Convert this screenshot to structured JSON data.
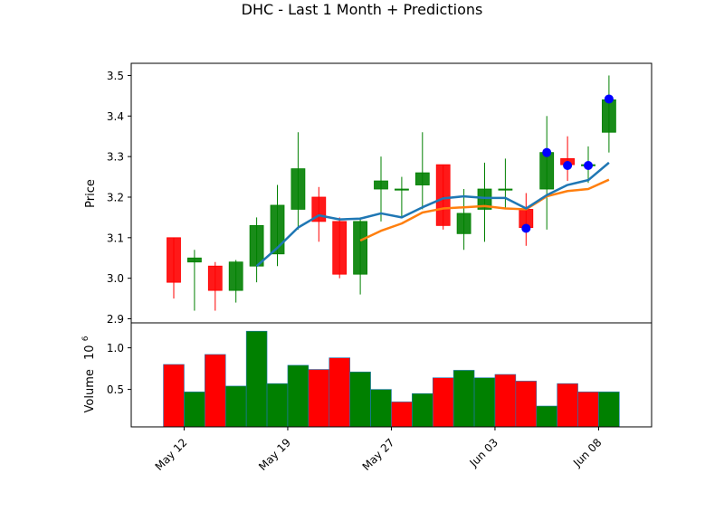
{
  "title": "DHC - Last 1 Month + Predictions",
  "chart_data": [
    {
      "type": "candlestick",
      "ylabel": "Price",
      "ylim": [
        2.89,
        3.53
      ],
      "yticks": [
        "2.9",
        "3.0",
        "3.1",
        "3.2",
        "3.3",
        "3.4",
        "3.5"
      ],
      "colors": {
        "up": "#008000",
        "down": "#ff0000",
        "ma1": "#1f77b4",
        "ma2": "#ff7f0e",
        "marker": "#0000ff"
      },
      "candles": [
        {
          "o": 3.1,
          "h": 3.1,
          "l": 2.95,
          "c": 2.99
        },
        {
          "o": 3.04,
          "h": 3.07,
          "l": 2.92,
          "c": 3.05
        },
        {
          "o": 3.03,
          "h": 3.04,
          "l": 2.92,
          "c": 2.97
        },
        {
          "o": 2.97,
          "h": 3.045,
          "l": 2.94,
          "c": 3.04
        },
        {
          "o": 3.03,
          "h": 3.15,
          "l": 2.99,
          "c": 3.13
        },
        {
          "o": 3.06,
          "h": 3.23,
          "l": 3.03,
          "c": 3.18
        },
        {
          "o": 3.17,
          "h": 3.36,
          "l": 3.12,
          "c": 3.27
        },
        {
          "o": 3.2,
          "h": 3.225,
          "l": 3.09,
          "c": 3.14
        },
        {
          "o": 3.14,
          "h": 3.15,
          "l": 3.0,
          "c": 3.01
        },
        {
          "o": 3.01,
          "h": 3.15,
          "l": 2.96,
          "c": 3.14
        },
        {
          "o": 3.22,
          "h": 3.3,
          "l": 3.14,
          "c": 3.24
        },
        {
          "o": 3.22,
          "h": 3.25,
          "l": 3.15,
          "c": 3.22
        },
        {
          "o": 3.23,
          "h": 3.36,
          "l": 3.17,
          "c": 3.26
        },
        {
          "o": 3.28,
          "h": 3.28,
          "l": 3.12,
          "c": 3.13
        },
        {
          "o": 3.11,
          "h": 3.22,
          "l": 3.07,
          "c": 3.16
        },
        {
          "o": 3.17,
          "h": 3.285,
          "l": 3.09,
          "c": 3.22
        },
        {
          "o": 3.22,
          "h": 3.295,
          "l": 3.17,
          "c": 3.22
        },
        {
          "o": 3.17,
          "h": 3.21,
          "l": 3.08,
          "c": 3.125
        },
        {
          "o": 3.22,
          "h": 3.4,
          "l": 3.12,
          "c": 3.31
        },
        {
          "o": 3.295,
          "h": 3.35,
          "l": 3.24,
          "c": 3.28
        },
        {
          "o": 3.28,
          "h": 3.325,
          "l": 3.235,
          "c": 3.28
        },
        {
          "o": 3.36,
          "h": 3.5,
          "l": 3.31,
          "c": 3.44
        }
      ],
      "ma1": [
        null,
        null,
        null,
        null,
        3.03,
        3.075,
        3.125,
        3.155,
        3.145,
        3.147,
        3.16,
        3.15,
        3.175,
        3.197,
        3.202,
        3.198,
        3.198,
        3.172,
        3.205,
        3.23,
        3.242,
        3.285
      ],
      "ma2": [
        null,
        null,
        null,
        null,
        null,
        null,
        null,
        null,
        null,
        3.093,
        3.117,
        3.135,
        3.162,
        3.172,
        3.175,
        3.178,
        3.172,
        3.17,
        3.202,
        3.215,
        3.22,
        3.243
      ],
      "markers": [
        {
          "i": 17,
          "v": 3.123
        },
        {
          "i": 18,
          "v": 3.31
        },
        {
          "i": 19,
          "v": 3.278
        },
        {
          "i": 20,
          "v": 3.278
        },
        {
          "i": 21,
          "v": 3.442
        }
      ]
    },
    {
      "type": "bar",
      "ylabel": "Volume",
      "scale_label": "10",
      "scale_exp": "6",
      "ylim": [
        0.05,
        1.3
      ],
      "yticks": [
        "0.5",
        "1.0"
      ],
      "values": [
        0.8,
        0.47,
        0.92,
        0.54,
        1.2,
        0.57,
        0.79,
        0.74,
        0.88,
        0.71,
        0.5,
        0.35,
        0.45,
        0.64,
        0.73,
        0.64,
        0.68,
        0.6,
        0.3,
        0.57,
        0.47,
        0.47
      ],
      "up": [
        false,
        true,
        false,
        true,
        true,
        true,
        true,
        false,
        false,
        true,
        true,
        false,
        true,
        false,
        true,
        true,
        false,
        false,
        true,
        false,
        false,
        true
      ]
    }
  ],
  "xticks": [
    {
      "i": 0.5,
      "label": "May 12"
    },
    {
      "i": 5.5,
      "label": "May 19"
    },
    {
      "i": 10.5,
      "label": "May 27"
    },
    {
      "i": 15.5,
      "label": "Jun 03"
    },
    {
      "i": 20.5,
      "label": "Jun 08"
    }
  ]
}
